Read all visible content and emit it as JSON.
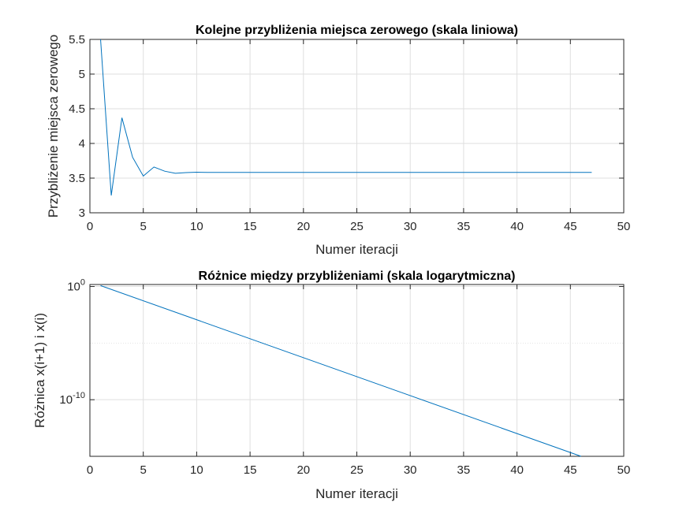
{
  "chart_data": [
    {
      "type": "line",
      "title": "Kolejne przybliżenia miejsca zerowego (skala liniowa)",
      "xlabel": "Numer iteracji",
      "ylabel": "Przybliżenie miejsca zerowego",
      "xlim": [
        0,
        50
      ],
      "ylim": [
        3,
        5.5
      ],
      "xticks": [
        0,
        5,
        10,
        15,
        20,
        25,
        30,
        35,
        40,
        45,
        50
      ],
      "yticks": [
        3,
        3.5,
        4,
        4.5,
        5,
        5.5
      ],
      "ytick_labels": [
        "3",
        "3.5",
        "4",
        "4.5",
        "5",
        "5.5"
      ],
      "grid": true,
      "yscale": "linear",
      "series_color": "#0072BD",
      "x": [
        1,
        2,
        3,
        4,
        5,
        6,
        7,
        8,
        9,
        10,
        11,
        12,
        13,
        14,
        15,
        16,
        17,
        18,
        19,
        20,
        21,
        22,
        23,
        24,
        25,
        26,
        27,
        28,
        29,
        30,
        31,
        32,
        33,
        34,
        35,
        36,
        37,
        38,
        39,
        40,
        41,
        42,
        43,
        44,
        45,
        46,
        47
      ],
      "values": [
        6.0,
        3.25,
        4.37,
        3.8,
        3.53,
        3.66,
        3.6,
        3.57,
        3.58,
        3.585,
        3.582,
        3.583,
        3.5825,
        3.5825,
        3.5825,
        3.5825,
        3.5825,
        3.5825,
        3.5825,
        3.5825,
        3.5825,
        3.5825,
        3.5825,
        3.5825,
        3.5825,
        3.5825,
        3.5825,
        3.5825,
        3.5825,
        3.5825,
        3.5825,
        3.5825,
        3.5825,
        3.5825,
        3.5825,
        3.5825,
        3.5825,
        3.5825,
        3.5825,
        3.5825,
        3.5825,
        3.5825,
        3.5825,
        3.5825,
        3.5825,
        3.5825,
        3.5825
      ]
    },
    {
      "type": "line",
      "title": "Różnice między przybliżeniami (skala logarytmiczna)",
      "xlabel": "Numer iteracji",
      "ylabel": "Różnica x(i+1) i x(i)",
      "xlim": [
        0,
        50
      ],
      "ylim": [
        1e-15,
        1.5
      ],
      "xticks": [
        0,
        5,
        10,
        15,
        20,
        25,
        30,
        35,
        40,
        45,
        50
      ],
      "yticks": [
        1,
        1e-10
      ],
      "ytick_labels": [
        {
          "base": "10",
          "exp": "0"
        },
        {
          "base": "10",
          "exp": "-10"
        }
      ],
      "grid": true,
      "yscale": "log",
      "series_color": "#0072BD",
      "x": [
        1,
        46
      ],
      "values": [
        1.2,
        1e-15
      ]
    }
  ]
}
